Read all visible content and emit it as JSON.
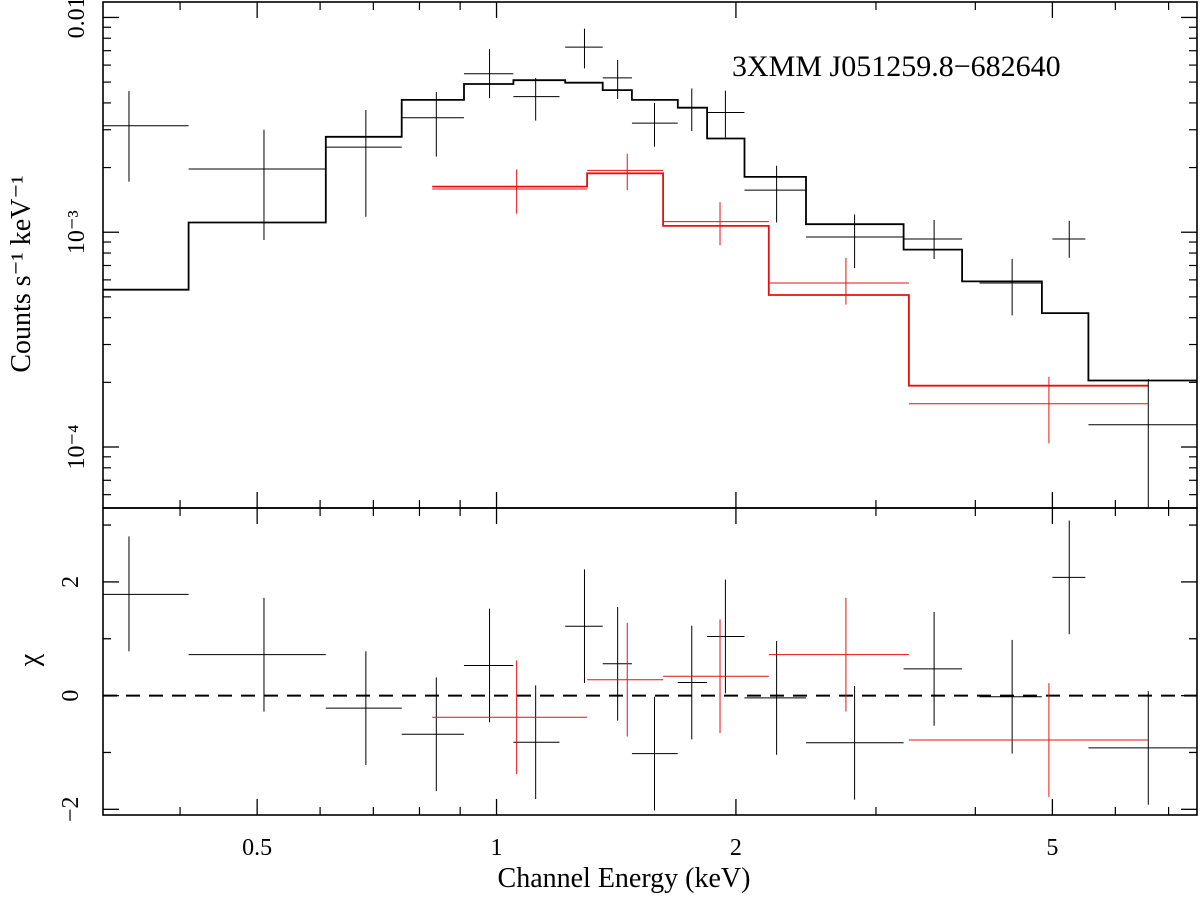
{
  "chart_data": {
    "type": "scatter",
    "annotation": "3XMM J051259.8−682640",
    "xlabel": "Channel Energy (keV)",
    "xscale": "log",
    "xlim": [
      0.32,
      7.6
    ],
    "xticks": [
      {
        "value": 0.5,
        "label": "0.5"
      },
      {
        "value": 1,
        "label": "1"
      },
      {
        "value": 2,
        "label": "2"
      },
      {
        "value": 5,
        "label": "5"
      }
    ],
    "grid": false,
    "colors": {
      "black": "#000000",
      "red": "#e8110f",
      "axes": "#000000"
    },
    "top_panel": {
      "ylabel": "Counts s⁻¹ keV⁻¹",
      "yscale": "log",
      "ylim": [
        5.2e-05,
        0.0118
      ],
      "yticks": [
        {
          "value": 0.0001,
          "label": "10⁻⁴"
        },
        {
          "value": 0.001,
          "label": "10⁻³"
        },
        {
          "value": 0.01,
          "label": "0.01"
        }
      ],
      "series": [
        {
          "color": "#000000",
          "points": [
            {
              "x": 0.345,
              "xlo": 0.29,
              "xhi": 0.41,
              "y": 0.00313,
              "ylo": 0.00172,
              "yhi": 0.00454
            },
            {
              "x": 0.51,
              "xlo": 0.41,
              "xhi": 0.61,
              "y": 0.00197,
              "ylo": 0.00092,
              "yhi": 0.003
            },
            {
              "x": 0.685,
              "xlo": 0.61,
              "xhi": 0.76,
              "y": 0.00249,
              "ylo": 0.00118,
              "yhi": 0.00371
            },
            {
              "x": 0.84,
              "xlo": 0.76,
              "xhi": 0.91,
              "y": 0.00341,
              "ylo": 0.00225,
              "yhi": 0.0045
            },
            {
              "x": 0.98,
              "xlo": 0.91,
              "xhi": 1.05,
              "y": 0.00547,
              "ylo": 0.00421,
              "yhi": 0.00712
            },
            {
              "x": 1.12,
              "xlo": 1.05,
              "xhi": 1.2,
              "y": 0.00428,
              "ylo": 0.00331,
              "yhi": 0.00523
            },
            {
              "x": 1.29,
              "xlo": 1.22,
              "xhi": 1.36,
              "y": 0.00727,
              "ylo": 0.00579,
              "yhi": 0.00887
            },
            {
              "x": 1.42,
              "xlo": 1.36,
              "xhi": 1.48,
              "y": 0.00523,
              "ylo": 0.00417,
              "yhi": 0.00634
            },
            {
              "x": 1.58,
              "xlo": 1.48,
              "xhi": 1.69,
              "y": 0.00322,
              "ylo": 0.0025,
              "yhi": 0.004
            },
            {
              "x": 1.76,
              "xlo": 1.69,
              "xhi": 1.84,
              "y": 0.00379,
              "ylo": 0.00296,
              "yhi": 0.00467
            },
            {
              "x": 1.94,
              "xlo": 1.84,
              "xhi": 2.05,
              "y": 0.00361,
              "ylo": 0.00276,
              "yhi": 0.00456
            },
            {
              "x": 2.25,
              "xlo": 2.05,
              "xhi": 2.45,
              "y": 0.00157,
              "ylo": 0.00111,
              "yhi": 0.00204
            },
            {
              "x": 2.82,
              "xlo": 2.45,
              "xhi": 3.25,
              "y": 0.00095,
              "ylo": 0.00068,
              "yhi": 0.00121
            },
            {
              "x": 3.55,
              "xlo": 3.25,
              "xhi": 3.85,
              "y": 0.00093,
              "ylo": 0.00075,
              "yhi": 0.00114
            },
            {
              "x": 4.45,
              "xlo": 4.05,
              "xhi": 4.85,
              "y": 0.00058,
              "ylo": 0.00041,
              "yhi": 0.00075
            },
            {
              "x": 5.25,
              "xlo": 5.0,
              "xhi": 5.5,
              "y": 0.00093,
              "ylo": 0.00076,
              "yhi": 0.00113
            },
            {
              "x": 6.6,
              "xlo": 5.55,
              "xhi": 7.6,
              "y": 0.000127,
              "ylo": 5e-05,
              "yhi": 0.000207
            }
          ],
          "model": {
            "edges": [
              0.29,
              0.41,
              0.61,
              0.76,
              0.91,
              1.05,
              1.22,
              1.36,
              1.48,
              1.69,
              1.84,
              2.05,
              2.45,
              3.25,
              3.85,
              4.85,
              5.55,
              7.6
            ],
            "values": [
              0.00054,
              0.00111,
              0.00278,
              0.00413,
              0.0049,
              0.0051,
              0.00497,
              0.00459,
              0.00413,
              0.0038,
              0.00273,
              0.00181,
              0.00109,
              0.00083,
              0.00059,
              0.00042,
              0.000204
            ]
          }
        },
        {
          "color": "#e8110f",
          "points": [
            {
              "x": 1.06,
              "xlo": 0.83,
              "xhi": 1.3,
              "y": 0.00159,
              "ylo": 0.00122,
              "yhi": 0.00196
            },
            {
              "x": 1.46,
              "xlo": 1.3,
              "xhi": 1.62,
              "y": 0.00194,
              "ylo": 0.00157,
              "yhi": 0.00232
            },
            {
              "x": 1.91,
              "xlo": 1.62,
              "xhi": 2.2,
              "y": 0.00112,
              "ylo": 0.00087,
              "yhi": 0.00138
            },
            {
              "x": 2.75,
              "xlo": 2.2,
              "xhi": 3.3,
              "y": 0.00058,
              "ylo": 0.00046,
              "yhi": 0.00076
            },
            {
              "x": 4.95,
              "xlo": 3.3,
              "xhi": 6.6,
              "y": 0.000159,
              "ylo": 0.000104,
              "yhi": 0.000212
            }
          ],
          "model": {
            "edges": [
              0.83,
              1.3,
              1.62,
              2.2,
              3.3,
              6.6
            ],
            "values": [
              0.00163,
              0.00188,
              0.00107,
              0.00051,
              0.000193
            ]
          }
        }
      ]
    },
    "bottom_panel": {
      "ylabel": "χ",
      "yscale": "linear",
      "ylim": [
        -2.1,
        3.3
      ],
      "yticks": [
        {
          "value": -2,
          "label": "−2"
        },
        {
          "value": 0,
          "label": "0"
        },
        {
          "value": 2,
          "label": "2"
        }
      ],
      "reference_line": {
        "y": 0,
        "style": "dashed"
      },
      "series": [
        {
          "color": "#000000",
          "points": [
            {
              "x": 0.345,
              "xlo": 0.29,
              "xhi": 0.41,
              "y": 1.78,
              "ylo": 0.78,
              "yhi": 2.8
            },
            {
              "x": 0.51,
              "xlo": 0.41,
              "xhi": 0.61,
              "y": 0.72,
              "ylo": -0.28,
              "yhi": 1.72
            },
            {
              "x": 0.685,
              "xlo": 0.61,
              "xhi": 0.76,
              "y": -0.22,
              "ylo": -1.22,
              "yhi": 0.78
            },
            {
              "x": 0.84,
              "xlo": 0.76,
              "xhi": 0.91,
              "y": -0.68,
              "ylo": -1.68,
              "yhi": 0.32
            },
            {
              "x": 0.98,
              "xlo": 0.91,
              "xhi": 1.05,
              "y": 0.53,
              "ylo": -0.47,
              "yhi": 1.53
            },
            {
              "x": 1.12,
              "xlo": 1.05,
              "xhi": 1.2,
              "y": -0.82,
              "ylo": -1.82,
              "yhi": 0.18
            },
            {
              "x": 1.29,
              "xlo": 1.22,
              "xhi": 1.36,
              "y": 1.22,
              "ylo": 0.22,
              "yhi": 2.22
            },
            {
              "x": 1.42,
              "xlo": 1.36,
              "xhi": 1.48,
              "y": 0.56,
              "ylo": -0.44,
              "yhi": 1.56
            },
            {
              "x": 1.58,
              "xlo": 1.48,
              "xhi": 1.69,
              "y": -1.02,
              "ylo": -2.02,
              "yhi": -0.02
            },
            {
              "x": 1.76,
              "xlo": 1.69,
              "xhi": 1.84,
              "y": 0.23,
              "ylo": -0.77,
              "yhi": 1.23
            },
            {
              "x": 1.94,
              "xlo": 1.84,
              "xhi": 2.05,
              "y": 1.04,
              "ylo": 0.04,
              "yhi": 2.04
            },
            {
              "x": 2.25,
              "xlo": 2.05,
              "xhi": 2.45,
              "y": -0.04,
              "ylo": -1.04,
              "yhi": 0.96
            },
            {
              "x": 2.82,
              "xlo": 2.45,
              "xhi": 3.25,
              "y": -0.83,
              "ylo": -1.83,
              "yhi": 0.17
            },
            {
              "x": 3.55,
              "xlo": 3.25,
              "xhi": 3.85,
              "y": 0.47,
              "ylo": -0.53,
              "yhi": 1.47
            },
            {
              "x": 4.45,
              "xlo": 4.05,
              "xhi": 4.85,
              "y": -0.02,
              "ylo": -1.02,
              "yhi": 0.98
            },
            {
              "x": 5.25,
              "xlo": 5.0,
              "xhi": 5.5,
              "y": 2.08,
              "ylo": 1.08,
              "yhi": 3.08
            },
            {
              "x": 6.6,
              "xlo": 5.55,
              "xhi": 7.6,
              "y": -0.92,
              "ylo": -1.92,
              "yhi": 0.08
            }
          ]
        },
        {
          "color": "#e8110f",
          "points": [
            {
              "x": 1.06,
              "xlo": 0.83,
              "xhi": 1.3,
              "y": -0.38,
              "ylo": -1.38,
              "yhi": 0.62
            },
            {
              "x": 1.46,
              "xlo": 1.3,
              "xhi": 1.62,
              "y": 0.28,
              "ylo": -0.72,
              "yhi": 1.28
            },
            {
              "x": 1.91,
              "xlo": 1.62,
              "xhi": 2.2,
              "y": 0.34,
              "ylo": -0.66,
              "yhi": 1.34
            },
            {
              "x": 2.75,
              "xlo": 2.2,
              "xhi": 3.3,
              "y": 0.72,
              "ylo": -0.28,
              "yhi": 1.72
            },
            {
              "x": 4.95,
              "xlo": 3.3,
              "xhi": 6.6,
              "y": -0.78,
              "ylo": -1.78,
              "yhi": 0.22
            }
          ]
        }
      ]
    }
  }
}
